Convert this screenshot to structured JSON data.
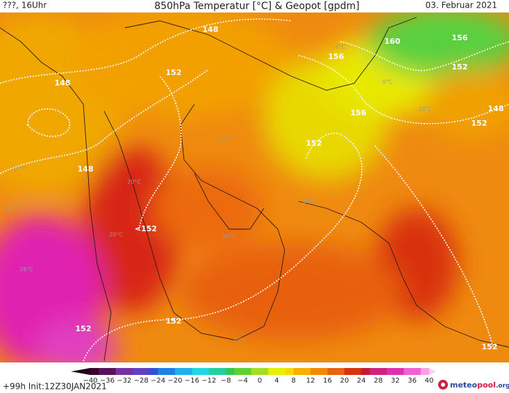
{
  "header": {
    "left": "???, 16Uhr",
    "title": "850hPa Temperatur [°C] & Geopot [gpdm]",
    "date": "03. Februar 2021"
  },
  "map": {
    "contour_labels": [
      "148",
      "148",
      "148",
      "152",
      "152",
      "<152",
      "152",
      "152",
      "152",
      "156",
      "160",
      "156",
      "152",
      "156",
      "152",
      "148"
    ],
    "temperature_labels": [
      "10°C",
      "16°C",
      "20°C",
      "20°C",
      "28°C",
      "10°C",
      "0°C",
      "10°C",
      "4°C",
      "10°C",
      "10°C",
      "20°C"
    ]
  },
  "colorbar": {
    "ticks": [
      "−40",
      "−36",
      "−32",
      "−28",
      "−24",
      "−20",
      "−16",
      "−12",
      "−8",
      "−4",
      "0",
      "4",
      "8",
      "12",
      "16",
      "20",
      "24",
      "28",
      "32",
      "36",
      "40"
    ]
  },
  "footer": {
    "run": "+99h Init:12Z30JAN2021",
    "logo": {
      "part1": "meteo",
      "part2": "pool",
      "part3": ".org"
    }
  }
}
